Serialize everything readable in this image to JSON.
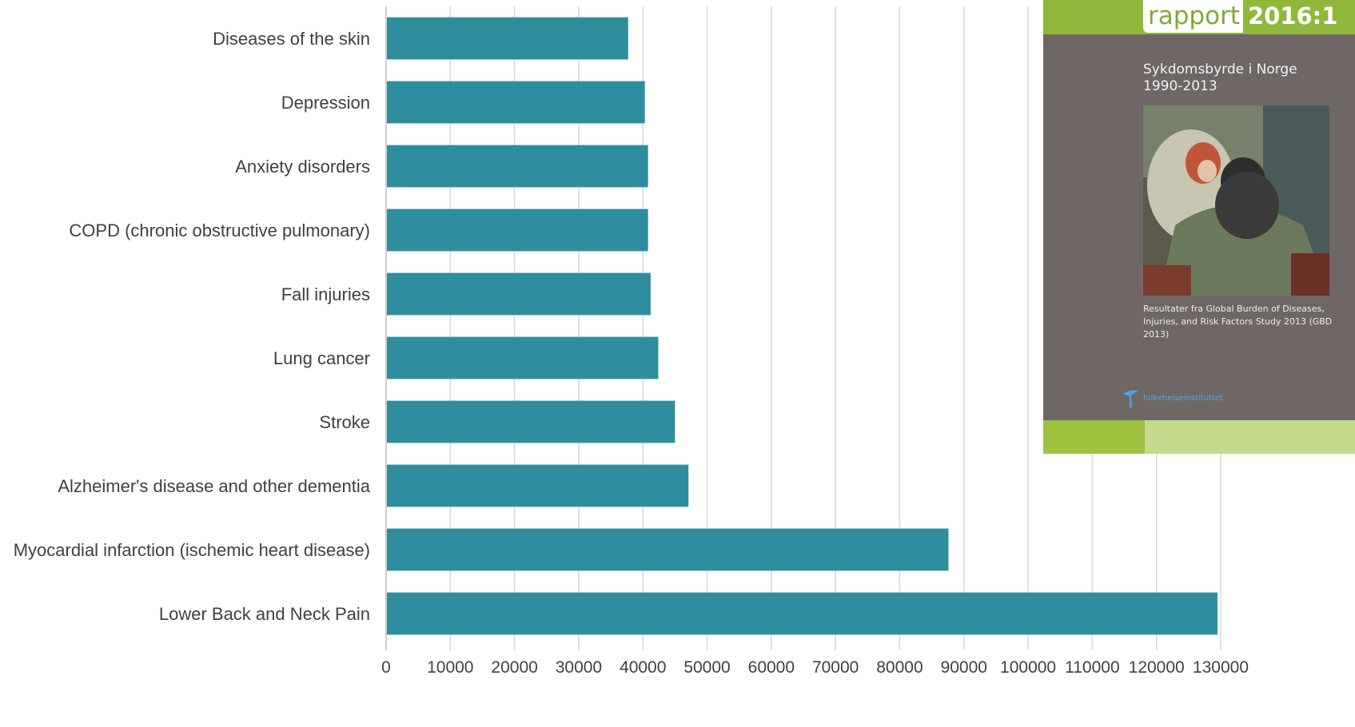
{
  "chart_data": {
    "type": "bar",
    "orientation": "horizontal",
    "categories": [
      "Diseases of the skin",
      "Depression",
      "Anxiety disorders",
      "COPD (chronic obstructive pulmonary)",
      "Fall injuries",
      "Lung cancer",
      "Stroke",
      "Alzheimer's disease and other dementia",
      "Myocardial infarction (ischemic heart disease)",
      "Lower Back and Neck Pain"
    ],
    "values": [
      37700,
      40300,
      40800,
      40800,
      41200,
      42400,
      45000,
      47100,
      87600,
      129500
    ],
    "xlim": [
      0,
      130000
    ],
    "xticks": [
      0,
      10000,
      20000,
      30000,
      40000,
      50000,
      60000,
      70000,
      80000,
      90000,
      100000,
      110000,
      120000,
      130000
    ],
    "title": "",
    "xlabel": "",
    "ylabel": "",
    "grid": "vertical",
    "bar_color": "#2e8e9e"
  },
  "cover": {
    "brand_left": "rapport",
    "brand_right": "2016:1",
    "title_line1": "Sykdomsbyrde i Norge",
    "title_line2": "1990-2013",
    "subtitle": "Resultater fra Global Burden of Diseases, Injuries, and Risk Factors Study 2013 (GBD 2013)",
    "publisher": "folkehelseinstituttet"
  }
}
